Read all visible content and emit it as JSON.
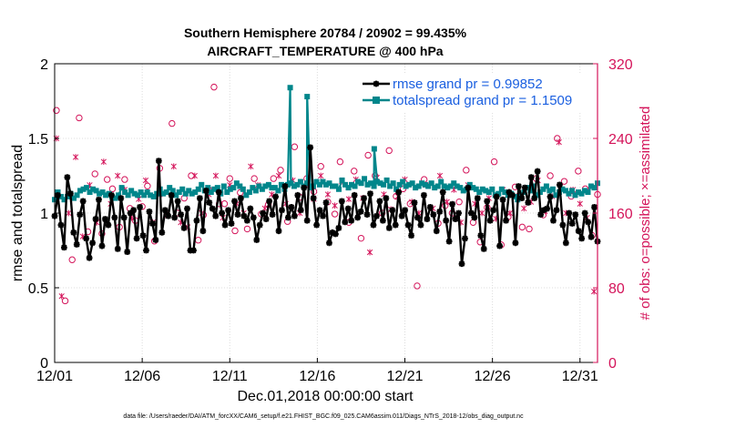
{
  "chart_data": {
    "type": "line",
    "title_line1": "Southern Hemisphere 20784 / 20902 = 99.435%",
    "title_line2": "AIRCRAFT_TEMPERATURE @ 400 hPa",
    "xlabel": "Dec.01,2018 00:00:00 start",
    "ylabel": "rmse and totalspread",
    "ylabel_right": "# of obs: o=possible; ×=assimilated",
    "footnote": "data file: /Users/raeder/DAI/ATM_forcXX/CAM6_setup/f.e21.FHIST_BGC.f09_025.CAM6assim.011/Diags_NTrS_2018-12/obs_diag_output.nc",
    "xlim": [
      0,
      31
    ],
    "ylim": [
      0,
      2
    ],
    "ylim_right": [
      0,
      320
    ],
    "xticks": [
      0,
      5,
      10,
      15,
      20,
      25,
      30
    ],
    "xticklabels": [
      "12/01",
      "12/06",
      "12/11",
      "12/16",
      "12/21",
      "12/26",
      "12/31"
    ],
    "yticks": [
      0,
      0.5,
      1,
      1.5,
      2
    ],
    "yticklabels": [
      "0",
      "0.5",
      "1",
      "1.5",
      "2"
    ],
    "yticks_right": [
      0,
      80,
      160,
      240,
      320
    ],
    "yticklabels_right": [
      "0",
      "80",
      "160",
      "240",
      "320"
    ],
    "grid": true,
    "legend_position": "top-right",
    "colors": {
      "rmse": "#000000",
      "spread": "#00868b",
      "obs": "#d4145a",
      "legend_text": "#1a5fe0"
    },
    "series": [
      {
        "name": "rmse grand pr = 0.99852",
        "key": "rmse",
        "values": [
          0.98,
          1.12,
          0.92,
          0.77,
          1.24,
          1.13,
          0.87,
          0.79,
          0.99,
          1.08,
          0.83,
          0.7,
          0.8,
          0.96,
          1.09,
          0.78,
          0.96,
          0.92,
          1.12,
          0.97,
          0.76,
          1.1,
          0.97,
          0.74,
          1.0,
          1.02,
          0.83,
          1.04,
          0.85,
          0.75,
          1.01,
          0.93,
          0.82,
          1.35,
          0.87,
          1.02,
          0.98,
          1.12,
          0.97,
          1.08,
          0.99,
          0.9,
          1.03,
          0.75,
          0.75,
          0.95,
          1.1,
          0.88,
          1.15,
          1.07,
          1.03,
          0.98,
          1.14,
          1.0,
          0.92,
          1.02,
          0.93,
          1.08,
          0.99,
          1.1,
          0.98,
          0.95,
          1.03,
          0.97,
          0.82,
          0.92,
          1.0,
          0.96,
          1.08,
          0.99,
          1.11,
          0.88,
          1.02,
          1.18,
          0.97,
          1.04,
          0.98,
          1.12,
          1.02,
          1.17,
          0.95,
          1.44,
          1.1,
          0.92,
          1.02,
          0.98,
          1.07,
          0.8,
          0.87,
          0.86,
          0.9,
          1.08,
          0.94,
          1.03,
          0.95,
          1.12,
          0.97,
          1.01,
          1.1,
          0.99,
          1.13,
          0.92,
          0.98,
          1.08,
          0.95,
          1.1,
          0.9,
          1.02,
          0.92,
          1.14,
          0.98,
          1.02,
          0.92,
          0.85,
          1.07,
          0.97,
          0.92,
          1.12,
          0.96,
          1.04,
          0.99,
          0.88,
          1.01,
          1.14,
          0.95,
          0.81,
          1.06,
          0.96,
          1.0,
          0.66,
          0.83,
          1.17,
          1.0,
          0.97,
          1.1,
          0.85,
          0.76,
          1.08,
          0.95,
          1.02,
          1.11,
          0.78,
          1.09,
          0.95,
          1.14,
          1.12,
          0.8,
          1.18,
          1.1,
          1.17,
          1.07,
          1.24,
          1.1,
          1.28,
          0.99,
          1.02,
          1.03,
          1.11,
          0.95,
          1.02,
          1.19,
          0.92,
          0.8,
          1.0,
          0.93,
          0.99,
          0.88,
          0.83,
          1.0,
          0.94,
          0.84,
          1.04,
          0.81
        ]
      },
      {
        "name": "totalspread grand pr = 1.1509",
        "key": "spread",
        "values": [
          1.09,
          1.14,
          1.11,
          1.09,
          1.11,
          1.13,
          1.1,
          1.12,
          1.15,
          1.16,
          1.17,
          1.14,
          1.16,
          1.15,
          1.13,
          1.14,
          1.12,
          1.13,
          1.11,
          1.1,
          1.12,
          1.17,
          1.14,
          1.12,
          1.15,
          1.13,
          1.12,
          1.14,
          1.12,
          1.14,
          1.12,
          1.11,
          1.13,
          1.16,
          1.13,
          1.14,
          1.17,
          1.15,
          1.12,
          1.14,
          1.16,
          1.13,
          1.15,
          1.13,
          1.14,
          1.16,
          1.19,
          1.15,
          1.17,
          1.14,
          1.16,
          1.17,
          1.13,
          1.18,
          1.14,
          1.16,
          1.17,
          1.2,
          1.18,
          1.16,
          1.12,
          1.14,
          1.17,
          1.15,
          1.18,
          1.16,
          1.18,
          1.19,
          1.17,
          1.17,
          1.15,
          1.19,
          1.16,
          1.19,
          1.2,
          1.18,
          1.19,
          1.21,
          1.18,
          1.2,
          1.17,
          1.18,
          1.21,
          1.19,
          1.21,
          1.19,
          1.2,
          1.18,
          1.18,
          1.16,
          1.22,
          1.19,
          1.17,
          1.19,
          1.18,
          1.21,
          1.2,
          1.23,
          1.19,
          1.2,
          1.18,
          1.21,
          1.2,
          1.19,
          1.22,
          1.18,
          1.2,
          1.16,
          1.19,
          1.21,
          1.18,
          1.19,
          1.2,
          1.17,
          1.18,
          1.2,
          1.19,
          1.18,
          1.2,
          1.17,
          1.18,
          1.21,
          1.18,
          1.17,
          1.18,
          1.2,
          1.18,
          1.17,
          1.15,
          1.16,
          1.19,
          1.17,
          1.16,
          1.14,
          1.16,
          1.15,
          1.14,
          1.16,
          1.12,
          1.13,
          1.16,
          1.14,
          1.12,
          1.13,
          1.11,
          1.09,
          1.11,
          1.14,
          1.17,
          1.15,
          1.18,
          1.12,
          1.14,
          1.16,
          1.18,
          1.15,
          1.16,
          1.12,
          1.14,
          1.16,
          1.15,
          1.13,
          1.15,
          1.12,
          1.14,
          1.13,
          1.15,
          1.14,
          1.18,
          1.17,
          1.2
        ]
      }
    ],
    "spread_spikes": [
      {
        "x": 13.45,
        "value": 1.84
      },
      {
        "x": 14.42,
        "value": 1.78
      },
      {
        "x": 18.25,
        "value": 1.43
      }
    ],
    "obs_possible": [
      [
        0.1,
        270
      ],
      [
        0.6,
        66
      ],
      [
        1.0,
        110
      ],
      [
        1.4,
        262
      ],
      [
        1.9,
        140
      ],
      [
        2.3,
        202
      ],
      [
        2.7,
        138
      ],
      [
        3.0,
        196
      ],
      [
        3.3,
        186
      ],
      [
        3.7,
        145
      ],
      [
        4.0,
        196
      ],
      [
        4.3,
        165
      ],
      [
        4.6,
        152
      ],
      [
        5.0,
        167
      ],
      [
        5.3,
        189
      ],
      [
        5.7,
        130
      ],
      [
        6.0,
        208
      ],
      [
        6.4,
        158
      ],
      [
        6.7,
        256
      ],
      [
        7.0,
        160
      ],
      [
        7.4,
        176
      ],
      [
        7.8,
        200
      ],
      [
        8.2,
        131
      ],
      [
        8.5,
        158
      ],
      [
        8.8,
        185
      ],
      [
        9.1,
        295
      ],
      [
        9.4,
        170
      ],
      [
        9.7,
        170
      ],
      [
        10.0,
        197
      ],
      [
        10.3,
        141
      ],
      [
        10.6,
        182
      ],
      [
        11.0,
        143
      ],
      [
        11.4,
        197
      ],
      [
        11.8,
        159
      ],
      [
        12.2,
        169
      ],
      [
        12.5,
        197
      ],
      [
        12.9,
        206
      ],
      [
        13.3,
        151
      ],
      [
        13.7,
        231
      ],
      [
        14.0,
        177
      ],
      [
        14.4,
        197
      ],
      [
        14.8,
        183
      ],
      [
        15.2,
        210
      ],
      [
        15.6,
        172
      ],
      [
        16.0,
        159
      ],
      [
        16.3,
        215
      ],
      [
        16.8,
        150
      ],
      [
        17.1,
        205
      ],
      [
        17.5,
        133
      ],
      [
        17.9,
        222
      ],
      [
        18.3,
        200
      ],
      [
        18.7,
        160
      ],
      [
        19.1,
        227
      ],
      [
        19.5,
        178
      ],
      [
        19.9,
        186
      ],
      [
        20.3,
        170
      ],
      [
        20.7,
        82
      ],
      [
        21.1,
        196
      ],
      [
        21.5,
        275
      ],
      [
        21.9,
        149
      ],
      [
        22.3,
        168
      ],
      [
        22.7,
        160
      ],
      [
        23.1,
        172
      ],
      [
        23.5,
        206
      ],
      [
        23.9,
        150
      ],
      [
        24.3,
        129
      ],
      [
        24.7,
        166
      ],
      [
        25.1,
        215
      ],
      [
        25.5,
        126
      ],
      [
        25.9,
        156
      ],
      [
        26.3,
        188
      ],
      [
        26.7,
        145
      ],
      [
        27.1,
        143
      ],
      [
        27.5,
        197
      ],
      [
        27.9,
        158
      ],
      [
        28.3,
        200
      ],
      [
        28.7,
        240
      ],
      [
        29.1,
        194
      ],
      [
        29.5,
        178
      ],
      [
        29.9,
        205
      ],
      [
        30.3,
        186
      ],
      [
        30.7,
        136
      ],
      [
        31.0,
        180
      ]
    ],
    "obs_assimilated": [
      [
        0.1,
        240
      ],
      [
        0.4,
        71
      ],
      [
        0.8,
        160
      ],
      [
        1.2,
        220
      ],
      [
        1.6,
        135
      ],
      [
        2.0,
        190
      ],
      [
        2.4,
        150
      ],
      [
        2.8,
        215
      ],
      [
        3.2,
        170
      ],
      [
        3.6,
        200
      ],
      [
        4.0,
        185
      ],
      [
        4.4,
        155
      ],
      [
        4.8,
        175
      ],
      [
        5.2,
        195
      ],
      [
        5.6,
        150
      ],
      [
        6.0,
        180
      ],
      [
        6.4,
        160
      ],
      [
        6.8,
        210
      ],
      [
        7.2,
        150
      ],
      [
        7.6,
        145
      ],
      [
        8.0,
        200
      ],
      [
        8.4,
        160
      ],
      [
        8.8,
        180
      ],
      [
        9.2,
        200
      ],
      [
        9.6,
        155
      ],
      [
        10.0,
        190
      ],
      [
        10.4,
        170
      ],
      [
        10.8,
        160
      ],
      [
        11.2,
        210
      ],
      [
        11.6,
        190
      ],
      [
        12.0,
        165
      ],
      [
        12.4,
        180
      ],
      [
        12.8,
        200
      ],
      [
        13.2,
        170
      ],
      [
        13.6,
        195
      ],
      [
        14.0,
        160
      ],
      [
        14.4,
        190
      ],
      [
        14.8,
        175
      ],
      [
        15.2,
        200
      ],
      [
        15.6,
        180
      ],
      [
        16.0,
        168
      ],
      [
        16.4,
        194
      ],
      [
        16.8,
        175
      ],
      [
        17.2,
        196
      ],
      [
        17.6,
        176
      ],
      [
        18.0,
        118
      ],
      [
        18.4,
        198
      ],
      [
        18.8,
        180
      ],
      [
        19.2,
        164
      ],
      [
        19.6,
        178
      ],
      [
        20.0,
        196
      ],
      [
        20.4,
        172
      ],
      [
        20.8,
        160
      ],
      [
        21.2,
        190
      ],
      [
        21.6,
        165
      ],
      [
        22.0,
        200
      ],
      [
        22.4,
        172
      ],
      [
        22.8,
        185
      ],
      [
        23.2,
        150
      ],
      [
        23.6,
        190
      ],
      [
        24.0,
        170
      ],
      [
        24.4,
        160
      ],
      [
        24.8,
        176
      ],
      [
        25.2,
        154
      ],
      [
        25.6,
        185
      ],
      [
        26.0,
        160
      ],
      [
        26.4,
        178
      ],
      [
        26.8,
        165
      ],
      [
        27.2,
        172
      ],
      [
        27.6,
        195
      ],
      [
        28.0,
        162
      ],
      [
        28.4,
        178
      ],
      [
        28.8,
        236
      ],
      [
        29.2,
        160
      ],
      [
        29.6,
        185
      ],
      [
        30.0,
        170
      ],
      [
        30.4,
        155
      ],
      [
        30.8,
        76
      ]
    ]
  }
}
